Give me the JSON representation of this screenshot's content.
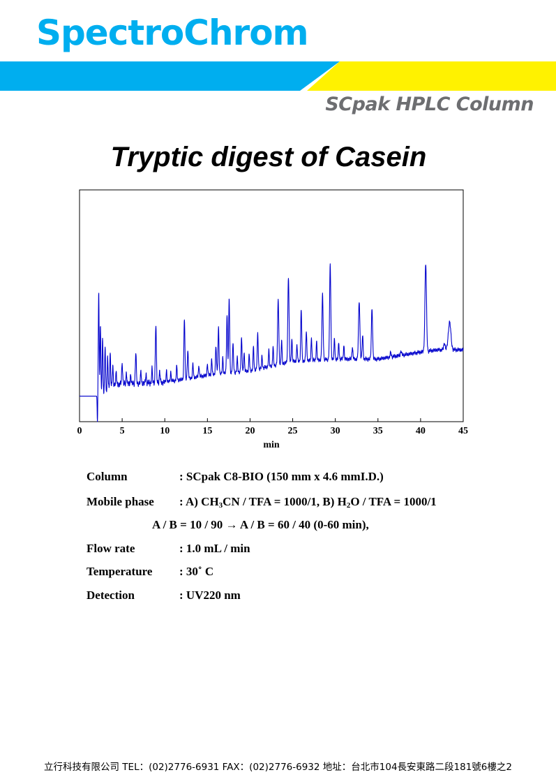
{
  "header": {
    "brand": "SpectroChrom",
    "subtitle": "SCpak HPLC Column",
    "colors": {
      "brand_blue": "#00aeef",
      "brand_yellow": "#fff200",
      "subtitle_gray": "#6d6e71"
    }
  },
  "chart_data": {
    "type": "line",
    "title": "Tryptic digest of Casein",
    "xlabel": "min",
    "ylabel": "",
    "xlim": [
      0,
      45
    ],
    "ylim": [
      0,
      100
    ],
    "xticks": [
      "0",
      "5",
      "10",
      "15",
      "20",
      "25",
      "30",
      "35",
      "40",
      "45"
    ],
    "line_color": "#0000cc",
    "baseline": [
      [
        0,
        11
      ],
      [
        2,
        11
      ],
      [
        2.1,
        10
      ],
      [
        4,
        16
      ],
      [
        10,
        17
      ],
      [
        15,
        20
      ],
      [
        20,
        22
      ],
      [
        25,
        26
      ],
      [
        30,
        27
      ],
      [
        35,
        27
      ],
      [
        40,
        30
      ],
      [
        42,
        31
      ],
      [
        45,
        31
      ]
    ],
    "peaks": [
      {
        "t": 2.1,
        "h": -11,
        "w": 0.03
      },
      {
        "t": 2.25,
        "h": 45,
        "w": 0.05
      },
      {
        "t": 2.45,
        "h": 30,
        "w": 0.05
      },
      {
        "t": 2.7,
        "h": 25,
        "w": 0.05
      },
      {
        "t": 3.0,
        "h": 20,
        "w": 0.05
      },
      {
        "t": 3.3,
        "h": 14,
        "w": 0.05
      },
      {
        "t": 3.6,
        "h": 15,
        "w": 0.05
      },
      {
        "t": 3.9,
        "h": 8,
        "w": 0.05
      },
      {
        "t": 4.3,
        "h": 5,
        "w": 0.05
      },
      {
        "t": 5.0,
        "h": 9,
        "w": 0.06
      },
      {
        "t": 5.5,
        "h": 5,
        "w": 0.05
      },
      {
        "t": 6.0,
        "h": 4,
        "w": 0.05
      },
      {
        "t": 6.6,
        "h": 13,
        "w": 0.06
      },
      {
        "t": 7.2,
        "h": 5,
        "w": 0.05
      },
      {
        "t": 7.8,
        "h": 4,
        "w": 0.05
      },
      {
        "t": 8.5,
        "h": 6,
        "w": 0.05
      },
      {
        "t": 8.95,
        "h": 25,
        "w": 0.06
      },
      {
        "t": 9.4,
        "h": 5,
        "w": 0.05
      },
      {
        "t": 10.2,
        "h": 5,
        "w": 0.05
      },
      {
        "t": 10.7,
        "h": 4,
        "w": 0.05
      },
      {
        "t": 11.4,
        "h": 6,
        "w": 0.05
      },
      {
        "t": 12.3,
        "h": 26,
        "w": 0.06
      },
      {
        "t": 12.7,
        "h": 12,
        "w": 0.06
      },
      {
        "t": 13.3,
        "h": 6,
        "w": 0.05
      },
      {
        "t": 14.0,
        "h": 5,
        "w": 0.05
      },
      {
        "t": 15.0,
        "h": 5,
        "w": 0.05
      },
      {
        "t": 15.5,
        "h": 7,
        "w": 0.05
      },
      {
        "t": 16.0,
        "h": 12,
        "w": 0.06
      },
      {
        "t": 16.3,
        "h": 20,
        "w": 0.06
      },
      {
        "t": 16.8,
        "h": 7,
        "w": 0.05
      },
      {
        "t": 17.3,
        "h": 25,
        "w": 0.06
      },
      {
        "t": 17.55,
        "h": 32,
        "w": 0.06
      },
      {
        "t": 18.0,
        "h": 12,
        "w": 0.06
      },
      {
        "t": 18.5,
        "h": 6,
        "w": 0.05
      },
      {
        "t": 19.0,
        "h": 14,
        "w": 0.06
      },
      {
        "t": 19.3,
        "h": 8,
        "w": 0.05
      },
      {
        "t": 19.9,
        "h": 7,
        "w": 0.05
      },
      {
        "t": 20.4,
        "h": 10,
        "w": 0.05
      },
      {
        "t": 20.9,
        "h": 15,
        "w": 0.06
      },
      {
        "t": 21.4,
        "h": 5,
        "w": 0.05
      },
      {
        "t": 22.2,
        "h": 7,
        "w": 0.05
      },
      {
        "t": 22.7,
        "h": 8,
        "w": 0.05
      },
      {
        "t": 23.3,
        "h": 28,
        "w": 0.07
      },
      {
        "t": 23.7,
        "h": 10,
        "w": 0.05
      },
      {
        "t": 24.5,
        "h": 37,
        "w": 0.07
      },
      {
        "t": 24.9,
        "h": 10,
        "w": 0.05
      },
      {
        "t": 25.5,
        "h": 7,
        "w": 0.05
      },
      {
        "t": 26.0,
        "h": 22,
        "w": 0.06
      },
      {
        "t": 26.6,
        "h": 12,
        "w": 0.06
      },
      {
        "t": 27.2,
        "h": 10,
        "w": 0.05
      },
      {
        "t": 27.8,
        "h": 8,
        "w": 0.05
      },
      {
        "t": 28.5,
        "h": 28,
        "w": 0.07
      },
      {
        "t": 29.4,
        "h": 41,
        "w": 0.07
      },
      {
        "t": 29.9,
        "h": 9,
        "w": 0.05
      },
      {
        "t": 30.4,
        "h": 7,
        "w": 0.05
      },
      {
        "t": 31.0,
        "h": 6,
        "w": 0.05
      },
      {
        "t": 32.0,
        "h": 5,
        "w": 0.06
      },
      {
        "t": 32.8,
        "h": 25,
        "w": 0.08
      },
      {
        "t": 33.2,
        "h": 10,
        "w": 0.06
      },
      {
        "t": 34.3,
        "h": 22,
        "w": 0.07
      },
      {
        "t": 36.5,
        "h": 2,
        "w": 0.06
      },
      {
        "t": 37.7,
        "h": 2,
        "w": 0.06
      },
      {
        "t": 40.6,
        "h": 38,
        "w": 0.09
      },
      {
        "t": 42.8,
        "h": 3,
        "w": 0.08
      },
      {
        "t": 43.4,
        "h": 12,
        "w": 0.15
      }
    ]
  },
  "conditions": {
    "column": {
      "label": "Column",
      "value": ": SCpak C8-BIO  (150 mm  x 4.6 mmI.D.)"
    },
    "mobile_phase": {
      "label": "Mobile phase",
      "value_pre": ": A) CH",
      "value_sub1": "3",
      "value_mid": "CN / TFA = 1000/1, B) H",
      "value_sub2": "2",
      "value_post": "O  / TFA = 1000/1",
      "line2": "A / B = 10 / 90 → A / B = 60 / 40 (0-60 min),"
    },
    "flow_rate": {
      "label": "Flow rate",
      "value": ": 1.0 mL / min"
    },
    "temperature": {
      "label": "Temperature",
      "value": ": 30˚ C"
    },
    "detection": {
      "label": "Detection",
      "value": ": UV220 nm"
    }
  },
  "footer": {
    "text": "立行科技有限公司 TEL：(02)2776-6931  FAX：(02)2776-6932   地址：台北市104長安東路二段181號6樓之2"
  }
}
